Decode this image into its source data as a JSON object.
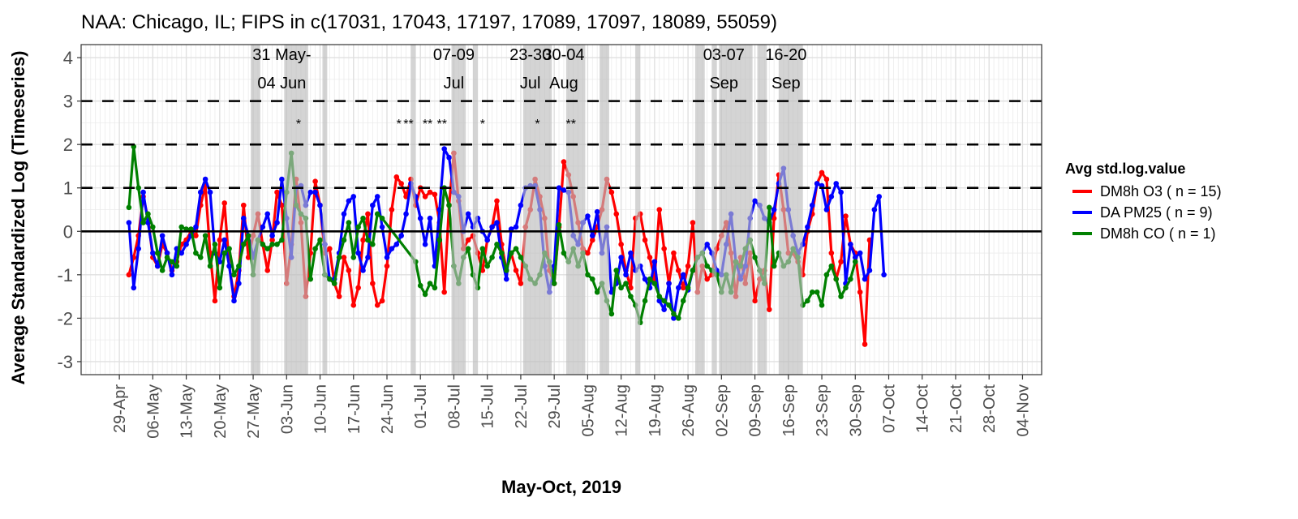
{
  "chart_data": {
    "type": "line",
    "title": "NAA: Chicago, IL; FIPS in c(17031, 17043, 17197, 17089, 17097, 18089, 55059)",
    "xlabel": "May-Oct, 2019",
    "ylabel": "Average Standardized Log (Timeseries)",
    "ylim": [
      -3.3,
      4.3
    ],
    "y_ticks": [
      "4",
      "3",
      "2",
      "1",
      "0",
      "-1",
      "-2",
      "-3"
    ],
    "y_tick_values": [
      4,
      3,
      2,
      1,
      0,
      -1,
      -2,
      -3
    ],
    "x_range_days": [
      -10,
      191
    ],
    "x_ticks": [
      "29-Apr",
      "06-May",
      "13-May",
      "20-May",
      "27-May",
      "03-Jun",
      "10-Jun",
      "17-Jun",
      "24-Jun",
      "01-Jul",
      "08-Jul",
      "15-Jul",
      "22-Jul",
      "29-Jul",
      "05-Aug",
      "12-Aug",
      "19-Aug",
      "26-Aug",
      "02-Sep",
      "09-Sep",
      "16-Sep",
      "23-Sep",
      "30-Sep",
      "07-Oct",
      "14-Oct",
      "21-Oct",
      "28-Oct",
      "04-Nov"
    ],
    "x_tick_days": [
      -2,
      5,
      12,
      19,
      26,
      33,
      40,
      47,
      54,
      61,
      68,
      75,
      82,
      89,
      96,
      103,
      110,
      117,
      124,
      131,
      138,
      145,
      152,
      159,
      166,
      173,
      180,
      187
    ],
    "x_day_origin": "01-May-2019",
    "reference_lines": {
      "solid": [
        0
      ],
      "dashed": [
        1,
        2,
        3
      ]
    },
    "grid": true,
    "legend": {
      "title": "Avg std.log.value",
      "position": "right",
      "entries": [
        {
          "label": "DM8h O3 ( n = 15)",
          "color": "#ff0000"
        },
        {
          "label": "DA PM25 ( n = 9)",
          "color": "#0000ff"
        },
        {
          "label": "DM8h CO ( n = 1)",
          "color": "#008000"
        }
      ]
    },
    "shaded_periods_days": [
      [
        25.5,
        27.5
      ],
      [
        32.5,
        37.5
      ],
      [
        40.5,
        41.5
      ],
      [
        59,
        60
      ],
      [
        67.5,
        70.5
      ],
      [
        72,
        73
      ],
      [
        82.5,
        88.5
      ],
      [
        91.5,
        95.5
      ],
      [
        98.5,
        100.5
      ],
      [
        106,
        107
      ],
      [
        118.5,
        120.5
      ],
      [
        122,
        123
      ],
      [
        123.5,
        130.5
      ],
      [
        131.5,
        133.5
      ],
      [
        136,
        141
      ]
    ],
    "annotations": [
      {
        "lines": [
          "31 May-",
          "04 Jun"
        ],
        "day": 32
      },
      {
        "lines": [
          "07-09",
          "Jul"
        ],
        "day": 68
      },
      {
        "lines": [
          "23-30",
          "Jul"
        ],
        "day": 84
      },
      {
        "lines": [
          "30-04",
          "Aug"
        ],
        "day": 91
      },
      {
        "lines": [
          "03-07",
          "Sep"
        ],
        "day": 124.5
      },
      {
        "lines": [
          "16-20",
          "Sep"
        ],
        "day": 137.5
      }
    ],
    "asterisks": [
      {
        "text": "*",
        "day": 35.5
      },
      {
        "text": "*",
        "day": 56.5
      },
      {
        "text": "**",
        "day": 58.5
      },
      {
        "text": "**",
        "day": 62.5
      },
      {
        "text": "**",
        "day": 65.5
      },
      {
        "text": "*",
        "day": 74
      },
      {
        "text": "*",
        "day": 85.5
      },
      {
        "text": "**",
        "day": 92.5
      }
    ],
    "series": [
      {
        "name": "DM8h O3 ( n = 15)",
        "color": "#ff0000",
        "start_day": 0,
        "values": [
          -1.0,
          -0.6,
          -0.1,
          0.8,
          0.3,
          -0.6,
          -0.8,
          -0.3,
          -0.5,
          -0.9,
          -0.7,
          -0.3,
          -0.2,
          0.0,
          -0.1,
          0.6,
          1.05,
          -0.5,
          -1.6,
          -0.2,
          0.65,
          -0.8,
          -1.5,
          -0.9,
          0.6,
          -0.6,
          -0.1,
          0.4,
          -0.3,
          -0.9,
          -0.2,
          0.9,
          0.6,
          -1.2,
          -0.3,
          1.2,
          0.2,
          -1.5,
          -0.5,
          1.15,
          0.6,
          -0.5,
          -0.4,
          -1.2,
          -1.5,
          -0.6,
          -0.9,
          -1.7,
          -1.3,
          -0.2,
          0.4,
          -1.2,
          -1.7,
          -1.6,
          -0.8,
          0.5,
          1.25,
          1.1,
          0.8,
          1.2,
          0.6,
          1.0,
          0.8,
          0.9,
          0.85,
          0.2,
          -1.4,
          0.6,
          1.8,
          0.7,
          -0.4,
          -0.2,
          -0.1,
          -0.5,
          -0.9,
          -0.2,
          0.1,
          0.7,
          -0.3,
          -0.9,
          -0.5,
          -0.9,
          -1.2,
          0.1,
          0.5,
          1.2,
          0.8,
          0.3,
          -0.9,
          -1.2,
          0.1,
          1.6,
          1.3,
          0.8,
          0.2,
          -0.4,
          -0.5,
          -0.2,
          0.1,
          0.5,
          1.2,
          0.9,
          0.4,
          -0.3,
          -0.9,
          -1.3,
          0.3,
          0.4,
          -0.2,
          -0.6,
          -1.1,
          0.5,
          -0.4,
          -1.2,
          -0.5,
          -0.9,
          -1.3,
          -0.8,
          0.2,
          -1.4,
          -0.8,
          -1.1,
          -1.0,
          -0.4,
          -0.1,
          0.2,
          -0.5,
          -1.5,
          -0.6,
          -1.2,
          -0.5,
          -1.6,
          -1.1,
          -0.9,
          -1.8,
          0.3,
          1.3,
          0.5,
          -0.5,
          -0.5,
          -0.7,
          -1.0,
          0.0,
          0.4,
          1.1,
          1.35,
          1.2,
          -0.5,
          -1.1,
          -0.7,
          0.35,
          -0.3,
          -0.5,
          -1.4,
          -2.6,
          -0.2
        ]
      },
      {
        "name": "DA PM25 ( n = 9)",
        "color": "#0000ff",
        "start_day": 0,
        "values": [
          0.2,
          -1.3,
          -0.4,
          0.9,
          0.2,
          -0.5,
          -0.8,
          -0.1,
          -0.5,
          -1.0,
          -0.4,
          -0.5,
          -0.3,
          -0.1,
          0.1,
          0.9,
          1.2,
          0.9,
          -0.5,
          -0.7,
          -0.2,
          -0.8,
          -1.6,
          -1.2,
          0.3,
          -0.1,
          -0.6,
          -0.2,
          0.1,
          0.4,
          -0.1,
          0.2,
          1.2,
          0.3,
          -0.6,
          1.0,
          1.05,
          0.6,
          0.9,
          0.9,
          0.6,
          -0.3,
          -1.1,
          -1.1,
          -0.5,
          0.4,
          0.7,
          0.8,
          -0.5,
          -0.9,
          -0.6,
          0.6,
          0.8,
          0.1,
          -0.6,
          -0.4,
          -0.3,
          -0.1,
          0.4,
          1.1,
          0.8,
          0.3,
          -0.3,
          0.3,
          -0.8,
          0.5,
          1.9,
          1.7,
          0.9,
          0.8,
          0.0,
          0.4,
          0.1,
          0.3,
          0.0,
          -0.2,
          0.1,
          0.2,
          -0.6,
          -1.1,
          0.05,
          0.1,
          0.6,
          1.0,
          1.05,
          1.05,
          0.5,
          -0.8,
          -1.4,
          -0.8,
          1.0,
          0.95,
          0.9,
          -0.1,
          -0.3,
          0.2,
          0.35,
          -0.1,
          0.45,
          -0.5,
          0.1,
          -1.4,
          -1.2,
          -0.6,
          -1.0,
          -0.5,
          -0.9,
          -0.8,
          -1.1,
          -1.3,
          -0.7,
          -1.6,
          -1.8,
          -1.2,
          -2.0,
          -1.3,
          -1.0,
          -1.35,
          -0.9,
          -0.6,
          -0.5,
          -0.3,
          -0.5,
          -0.9,
          -1.0,
          -0.3,
          0.4,
          -0.7,
          -1.1,
          -0.8,
          0.3,
          0.7,
          0.6,
          0.3,
          0.2,
          0.5,
          1.1,
          1.45,
          0.5,
          -0.1,
          -0.5,
          -0.3,
          0.1,
          0.6,
          1.1,
          1.05,
          0.5,
          0.8,
          1.1,
          0.9,
          -1.2,
          -0.3,
          -0.6,
          -0.5,
          -1.1,
          -0.9,
          0.5,
          0.8,
          -1.0
        ]
      },
      {
        "name": "DM8h CO ( n = 1)",
        "color": "#008000",
        "start_day": 0,
        "values": [
          0.55,
          1.95,
          1.0,
          0.2,
          0.4,
          0.1,
          -0.5,
          -0.9,
          -0.6,
          -0.7,
          -0.8,
          0.1,
          0.05,
          0.05,
          -0.5,
          -0.6,
          -0.1,
          -0.8,
          -0.3,
          -1.3,
          -0.5,
          -0.4,
          -1.0,
          -0.8,
          -0.3,
          -0.1,
          -1.0,
          -0.2,
          -0.3,
          -0.4,
          -0.3,
          -0.3,
          -0.2,
          0.9,
          1.8,
          0.6,
          0.4,
          0.3,
          -1.1,
          -0.4,
          -0.2,
          -1.0,
          -1.1,
          -1.2,
          -0.6,
          -0.2,
          0.2,
          -0.6,
          0.1,
          0.3,
          -0.2,
          -0.3,
          0.4,
          0.3,
          null,
          null,
          null,
          null,
          null,
          null,
          -0.7,
          -1.25,
          -1.45,
          -1.2,
          -1.3,
          -0.2,
          1.0,
          0.6,
          -0.8,
          -1.2,
          -0.6,
          -0.4,
          -1.0,
          -1.3,
          -0.4,
          -0.8,
          -0.6,
          -0.3,
          -0.5,
          -0.9,
          -0.5,
          -0.4,
          -0.6,
          -0.8,
          -1.1,
          -1.2,
          -1.0,
          -0.5,
          -0.7,
          -1.2,
          0.15,
          -0.5,
          -0.7,
          -0.4,
          -0.8,
          -0.5,
          -1.0,
          -1.1,
          -1.4,
          -1.2,
          -1.6,
          -1.9,
          -0.9,
          -1.3,
          -1.2,
          -1.5,
          -1.7,
          -2.1,
          -1.6,
          -1.1,
          -1.2,
          -1.5,
          -1.6,
          -1.7,
          -1.9,
          -2.0,
          -1.6,
          -1.3,
          -0.9,
          -0.6,
          -0.5,
          -0.8,
          -0.9,
          -1.0,
          -1.4,
          -1.0,
          -1.4,
          -0.7,
          -0.8,
          -0.4,
          -0.2,
          -0.6,
          -0.9,
          -1.2,
          0.55,
          -0.8,
          -0.5,
          -0.8,
          -0.7,
          -0.4,
          -0.6,
          -1.7,
          -1.6,
          -1.4,
          -1.4,
          -1.7,
          -1.0,
          -0.8,
          -1.1,
          -1.5,
          -1.3,
          -1.1,
          -0.7
        ]
      }
    ]
  }
}
